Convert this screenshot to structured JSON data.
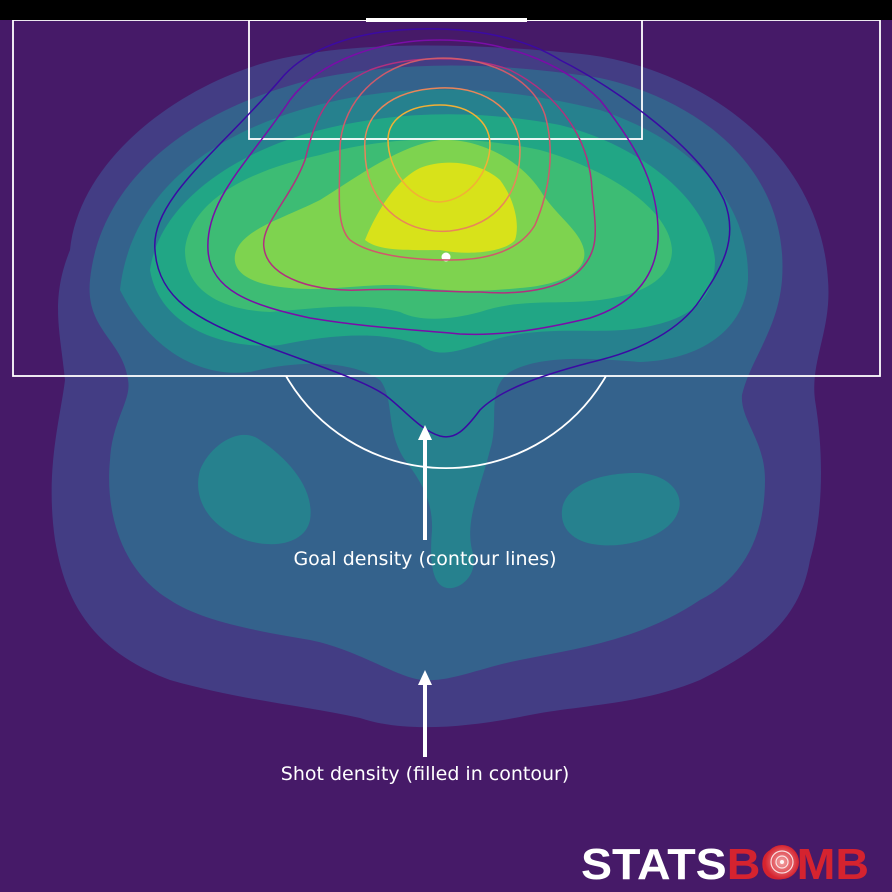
{
  "chart_data": {
    "type": "heatmap",
    "title": "",
    "view": "vertical half-pitch, goal at top",
    "series": [
      {
        "name": "Shot density (filled in contour)",
        "style": "filled contour",
        "colormap": "viridis",
        "levels": [
          "#462068",
          "#433d84",
          "#34628c",
          "#26818e",
          "#21a685",
          "#3dbc74",
          "#7ed34f",
          "#d8e21a"
        ]
      },
      {
        "name": "Goal density (contour lines)",
        "style": "contour lines",
        "colormap": "plasma",
        "levels": [
          "#3b0aa3",
          "#7a0da8",
          "#b2307f",
          "#cf5a6b",
          "#e9855a",
          "#f2b035"
        ]
      }
    ],
    "annotations": [
      {
        "text": "Goal density (contour lines)",
        "target": "goal contour lines"
      },
      {
        "text": "Shot density (filled in contour)",
        "target": "shot density fill"
      }
    ],
    "legend": "none",
    "grid": false
  },
  "colors": {
    "background": "#461a68",
    "pitch_lines": "#ffffff",
    "top_bar": "#000000",
    "logo_white": "#ffffff",
    "logo_red": "#d5232f"
  },
  "logo": {
    "part1": "STATS",
    "part2": "BOMB"
  }
}
